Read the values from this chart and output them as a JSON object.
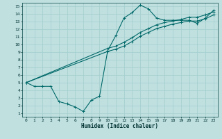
{
  "title": "",
  "xlabel": "Humidex (Indice chaleur)",
  "bg_color": "#c0e0e0",
  "grid_color": "#a8d0d0",
  "line_color": "#006868",
  "xlim": [
    -0.5,
    23.5
  ],
  "ylim": [
    0.5,
    15.5
  ],
  "xticks": [
    0,
    1,
    2,
    3,
    4,
    5,
    6,
    7,
    8,
    9,
    10,
    11,
    12,
    13,
    14,
    15,
    16,
    17,
    18,
    19,
    20,
    21,
    22,
    23
  ],
  "yticks": [
    1,
    2,
    3,
    4,
    5,
    6,
    7,
    8,
    9,
    10,
    11,
    12,
    13,
    14,
    15
  ],
  "line1_x": [
    0,
    1,
    2,
    3,
    4,
    5,
    6,
    7,
    8,
    9,
    10,
    11,
    12,
    13,
    14,
    15,
    16,
    17,
    18,
    19,
    20,
    21,
    22,
    23
  ],
  "line1_y": [
    5.0,
    4.5,
    4.5,
    4.5,
    2.5,
    2.2,
    1.8,
    1.2,
    2.7,
    3.2,
    9.2,
    11.2,
    13.5,
    14.2,
    15.2,
    14.7,
    13.5,
    13.2,
    13.2,
    13.2,
    13.2,
    12.8,
    13.5,
    14.5
  ],
  "line2_x": [
    0,
    10,
    11,
    12,
    13,
    14,
    15,
    16,
    17,
    18,
    19,
    20,
    21,
    22,
    23
  ],
  "line2_y": [
    5.0,
    9.5,
    9.8,
    10.3,
    10.9,
    11.6,
    12.1,
    12.6,
    12.9,
    13.1,
    13.3,
    13.6,
    13.6,
    13.9,
    14.3
  ],
  "line3_x": [
    0,
    10,
    11,
    12,
    13,
    14,
    15,
    16,
    17,
    18,
    19,
    20,
    21,
    22,
    23
  ],
  "line3_y": [
    5.0,
    9.1,
    9.4,
    9.8,
    10.4,
    11.1,
    11.6,
    12.1,
    12.4,
    12.7,
    12.9,
    13.1,
    13.1,
    13.4,
    13.9
  ]
}
